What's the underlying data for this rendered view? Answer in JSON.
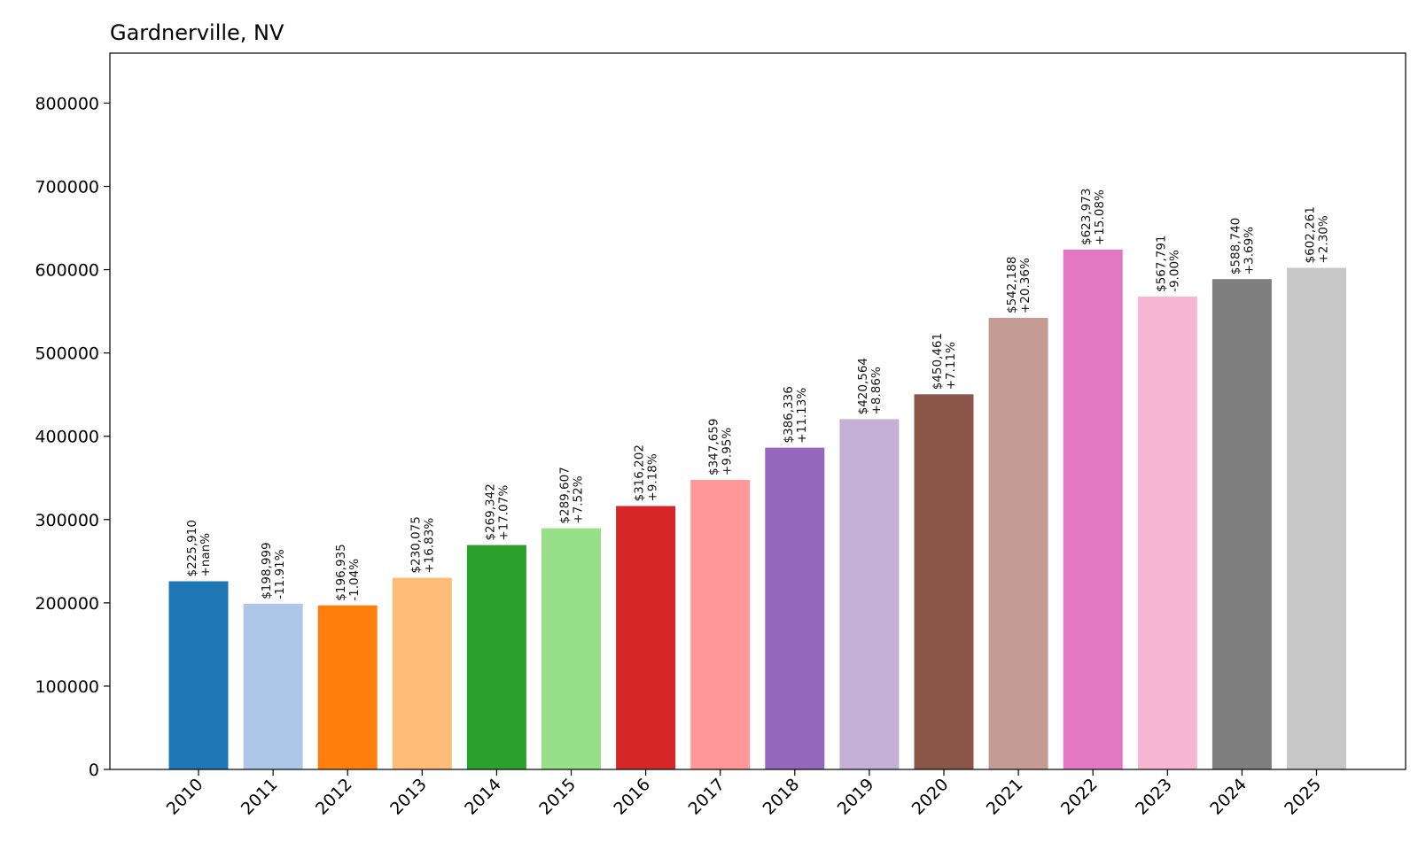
{
  "chart_data": {
    "type": "bar",
    "title": "Gardnerville, NV",
    "xlabel": "",
    "ylabel": "",
    "ylim": [
      0,
      860000
    ],
    "yticks": [
      0,
      100000,
      200000,
      300000,
      400000,
      500000,
      600000,
      700000,
      800000
    ],
    "grid": false,
    "categories": [
      "2010",
      "2011",
      "2012",
      "2013",
      "2014",
      "2015",
      "2016",
      "2017",
      "2018",
      "2019",
      "2020",
      "2021",
      "2022",
      "2023",
      "2024",
      "2025"
    ],
    "values": [
      225910,
      198999,
      196935,
      230075,
      269342,
      289607,
      316202,
      347659,
      386336,
      420564,
      450461,
      542188,
      623973,
      567791,
      588740,
      602261
    ],
    "value_labels": [
      "$225,910",
      "$198,999",
      "$196,935",
      "$230,075",
      "$269,342",
      "$289,607",
      "$316,202",
      "$347,659",
      "$386,336",
      "$420,564",
      "$450,461",
      "$542,188",
      "$623,973",
      "$567,791",
      "$588,740",
      "$602,261"
    ],
    "change_labels": [
      "+nan%",
      "-11.91%",
      "-1.04%",
      "+16.83%",
      "+17.07%",
      "+7.52%",
      "+9.18%",
      "+9.95%",
      "+11.13%",
      "+8.86%",
      "+7.11%",
      "+20.36%",
      "+15.08%",
      "-9.00%",
      "+3.69%",
      "+2.30%"
    ],
    "colors": [
      "#1f77b4",
      "#aec7e8",
      "#ff7f0e",
      "#ffbb78",
      "#2ca02c",
      "#98df8a",
      "#d62728",
      "#ff9896",
      "#9467bd",
      "#c5b0d5",
      "#8c564b",
      "#c49c94",
      "#e377c2",
      "#f7b6d2",
      "#7f7f7f",
      "#c7c7c7"
    ]
  }
}
